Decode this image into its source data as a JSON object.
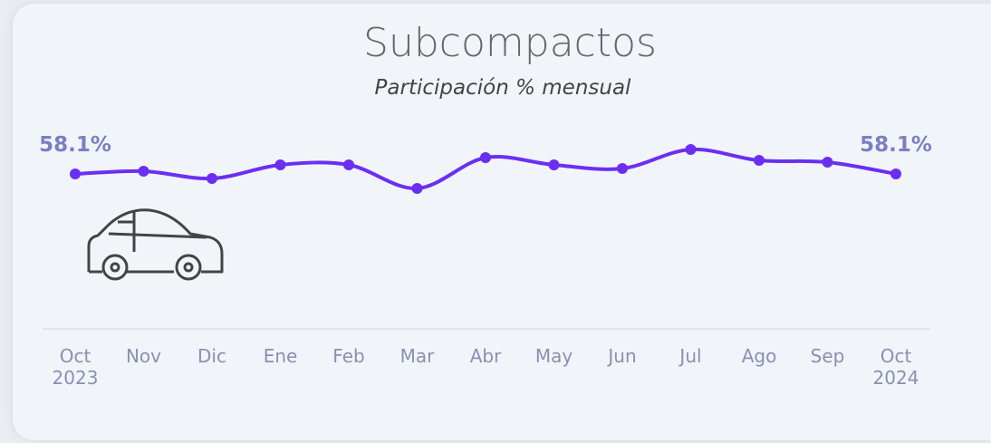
{
  "chart_data": {
    "type": "line",
    "title": "Subcompactos",
    "subtitle": "Participación % mensual",
    "categories": [
      "Oct\n2023",
      "Nov",
      "Dic",
      "Ene",
      "Feb",
      "Mar",
      "Abr",
      "May",
      "Jun",
      "Jul",
      "Ago",
      "Sep",
      "Oct\n2024"
    ],
    "series": [
      {
        "color": "#6b2ff2",
        "values": [
          58.1,
          58.4,
          57.6,
          59.1,
          59.1,
          56.5,
          59.9,
          59.1,
          58.7,
          60.8,
          59.6,
          59.4,
          58.1
        ],
        "value_labels": [
          "58.1%",
          null,
          null,
          null,
          null,
          null,
          null,
          null,
          null,
          null,
          null,
          null,
          "58.1%"
        ]
      }
    ]
  }
}
